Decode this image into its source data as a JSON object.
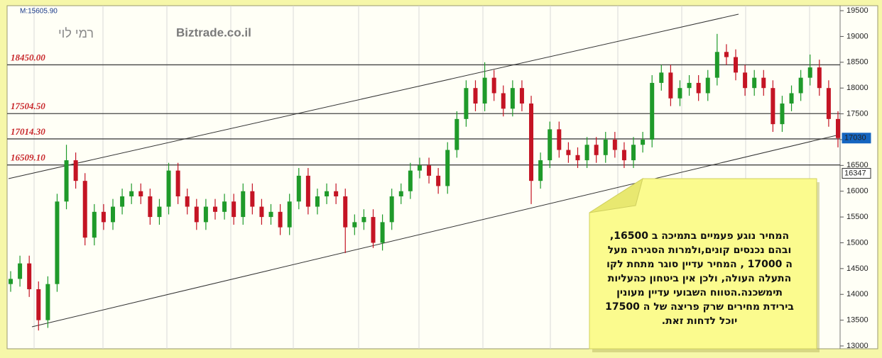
{
  "chart_data": {
    "type": "candlestick",
    "title": "Biztrade.co.il",
    "subtitle": "רמי לוי",
    "corner_label": "M:15605.90",
    "up_color": "#1f9a2a",
    "down_color": "#c41424",
    "ylim": [
      12945,
      19597
    ],
    "yticks": [
      13000,
      13500,
      14000,
      14500,
      15000,
      15500,
      16000,
      16500,
      17000,
      17500,
      18000,
      18500,
      19000,
      19500
    ],
    "levels": [
      {
        "value": 18450,
        "label": "18450.00"
      },
      {
        "value": 17504.5,
        "label": "17504.50"
      },
      {
        "value": 17014.3,
        "label": "17014.30"
      },
      {
        "value": 16509.1,
        "label": "16509.10"
      }
    ],
    "price_tags": [
      {
        "value": 17030,
        "color": "#1565c0"
      },
      {
        "value": 16347,
        "color": "#ffffff"
      }
    ],
    "open": [
      14200,
      14300,
      14600,
      14100,
      13500,
      14200,
      15800,
      16600,
      16200,
      15100,
      15600,
      15400,
      15700,
      15900,
      16000,
      15900,
      15500,
      15700,
      16400,
      15900,
      15700,
      15400,
      15700,
      15600,
      15800,
      15500,
      16000,
      15700,
      15500,
      15600,
      15300,
      15800,
      16300,
      15700,
      15900,
      16000,
      15900,
      15300,
      15400,
      15500,
      15000,
      15400,
      15900,
      16000,
      16400,
      16500,
      16300,
      16100,
      16800,
      17400,
      18000,
      17700,
      18200,
      17900,
      17600,
      18000,
      17700,
      16200,
      16600,
      17200,
      16800,
      16700,
      16600,
      16900,
      16700,
      17000,
      16800,
      16600,
      16900,
      17000,
      18100,
      18300,
      17800,
      18000,
      18100,
      17900,
      18200,
      18700,
      18600,
      18300,
      18000,
      18200,
      18000,
      17300,
      17700,
      17900,
      18200,
      18400,
      18000,
      17400
    ],
    "high": [
      14450,
      14750,
      14750,
      14250,
      14350,
      15950,
      16900,
      16750,
      16350,
      15750,
      15750,
      15850,
      16050,
      16150,
      16150,
      16050,
      15850,
      16550,
      16550,
      16050,
      15850,
      15850,
      15850,
      15950,
      15950,
      16150,
      16150,
      15850,
      15750,
      15750,
      15950,
      16450,
      16450,
      16050,
      16150,
      16150,
      16050,
      15550,
      15650,
      15650,
      15550,
      16050,
      16150,
      16550,
      16650,
      16650,
      16450,
      16950,
      17550,
      18150,
      18150,
      18500,
      18350,
      18050,
      18150,
      18150,
      17850,
      16750,
      17350,
      17350,
      16950,
      16850,
      17050,
      17050,
      17150,
      17150,
      16950,
      17050,
      17150,
      18250,
      18450,
      18450,
      18150,
      18250,
      18250,
      18350,
      19050,
      18850,
      18750,
      18450,
      18350,
      18350,
      18150,
      17850,
      18050,
      18350,
      18650,
      18550,
      18150,
      17550
    ],
    "low": [
      14050,
      14150,
      13950,
      13300,
      13350,
      14050,
      15650,
      16050,
      14950,
      14950,
      15250,
      15250,
      15550,
      15750,
      15750,
      15350,
      15350,
      15550,
      15750,
      15550,
      15250,
      15250,
      15450,
      15450,
      15350,
      15350,
      15550,
      15350,
      15350,
      15150,
      15150,
      15650,
      15550,
      15550,
      15750,
      15750,
      14800,
      15150,
      15250,
      14900,
      14850,
      15250,
      15750,
      15850,
      16250,
      16150,
      15950,
      15950,
      16650,
      17250,
      17550,
      17550,
      17750,
      17450,
      17450,
      17550,
      15750,
      16050,
      16450,
      16650,
      16550,
      16450,
      16450,
      16550,
      16550,
      16650,
      16450,
      16450,
      16750,
      16850,
      17950,
      17650,
      17650,
      17850,
      17750,
      17750,
      18050,
      18450,
      18150,
      17850,
      17850,
      17850,
      17150,
      17150,
      17550,
      17750,
      18050,
      17850,
      17250,
      16850
    ],
    "close": [
      14300,
      14600,
      14100,
      13500,
      14200,
      15800,
      16600,
      16200,
      15100,
      15600,
      15400,
      15700,
      15900,
      16000,
      15900,
      15500,
      15700,
      16400,
      15900,
      15700,
      15400,
      15700,
      15600,
      15800,
      15500,
      16000,
      15700,
      15500,
      15600,
      15300,
      15800,
      16300,
      15700,
      15900,
      16000,
      15900,
      15300,
      15400,
      15500,
      15000,
      15400,
      15900,
      16000,
      16400,
      16500,
      16300,
      16100,
      16800,
      17400,
      18000,
      17700,
      18200,
      17900,
      17600,
      18000,
      17700,
      16200,
      16600,
      17200,
      16800,
      16700,
      16600,
      16900,
      16700,
      17000,
      16800,
      16600,
      16900,
      17000,
      18100,
      18300,
      17800,
      18000,
      18100,
      17900,
      18200,
      18700,
      18600,
      18300,
      18000,
      18200,
      18000,
      17300,
      17700,
      17900,
      18200,
      18400,
      18000,
      17400,
      17030
    ],
    "note": [
      "המחיר נוגע פעמיים בתמיכה ב 16500,",
      "ובהם נכנסים קונים,ולמרות הסגירה מעל",
      "ה 17000 , המחיר עדיין סוגר מתחת לקו",
      "התעלה העולה, ולכן אין ביטחון כהעליות",
      "תימשכנה.הטווח השבועי עדיין מעונין",
      "בירידת מחירים שרק פריצה של ה 17500",
      "יוכל לדחות זאת."
    ]
  }
}
